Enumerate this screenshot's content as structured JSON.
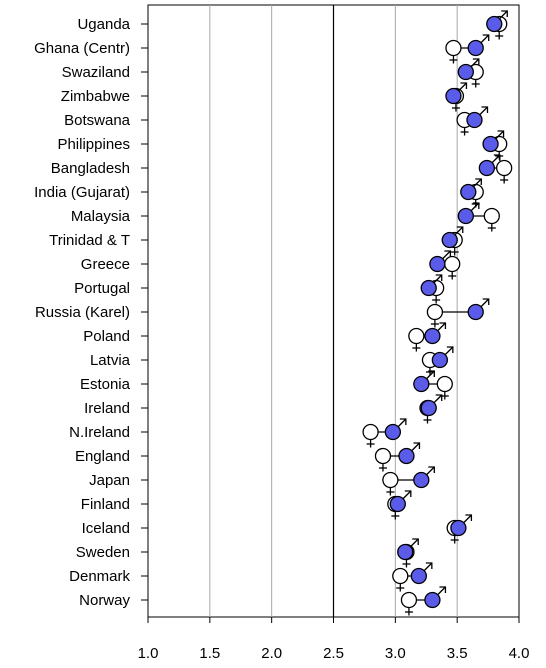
{
  "chart_data": {
    "type": "scatter",
    "orientation": "horizontal-dot-plot",
    "xlim": [
      1.0,
      4.0
    ],
    "x_ticks": [
      1.0,
      1.5,
      2.0,
      2.5,
      3.0,
      3.5,
      4.0
    ],
    "x_tick_labels": [
      "1.0",
      "1.5",
      "2.0",
      "2.5",
      "3.0",
      "3.5",
      "4.0"
    ],
    "reference_line": 2.5,
    "grid": "vertical",
    "colors": {
      "male_fill": "#5b5bea",
      "female_fill": "#ffffff",
      "stroke": "#000000",
      "grid": "#a8a8a8"
    },
    "series": [
      {
        "symbol": "female-symbol",
        "marker": "open circle"
      },
      {
        "symbol": "male-symbol",
        "marker": "filled blue circle"
      }
    ],
    "categories": [
      "Uganda",
      "Ghana (Centr)",
      "Swaziland",
      "Zimbabwe",
      "Botswana",
      "Philippines",
      "Bangladesh",
      "India (Gujarat)",
      "Malaysia",
      "Trinidad & T",
      "Greece",
      "Portugal",
      "Russia (Karel)",
      "Poland",
      "Latvia",
      "Estonia",
      "Ireland",
      "N.Ireland",
      "England",
      "Japan",
      "Finland",
      "Iceland",
      "Sweden",
      "Denmark",
      "Norway"
    ],
    "female": [
      3.84,
      3.47,
      3.65,
      3.49,
      3.56,
      3.84,
      3.88,
      3.65,
      3.78,
      3.48,
      3.46,
      3.33,
      3.32,
      3.17,
      3.28,
      3.4,
      3.26,
      2.8,
      2.9,
      2.96,
      3.0,
      3.48,
      3.09,
      3.04,
      3.11
    ],
    "male": [
      3.8,
      3.65,
      3.57,
      3.47,
      3.64,
      3.77,
      3.74,
      3.59,
      3.57,
      3.44,
      3.34,
      3.27,
      3.65,
      3.3,
      3.36,
      3.21,
      3.27,
      2.98,
      3.09,
      3.21,
      3.02,
      3.51,
      3.08,
      3.19,
      3.3
    ]
  }
}
